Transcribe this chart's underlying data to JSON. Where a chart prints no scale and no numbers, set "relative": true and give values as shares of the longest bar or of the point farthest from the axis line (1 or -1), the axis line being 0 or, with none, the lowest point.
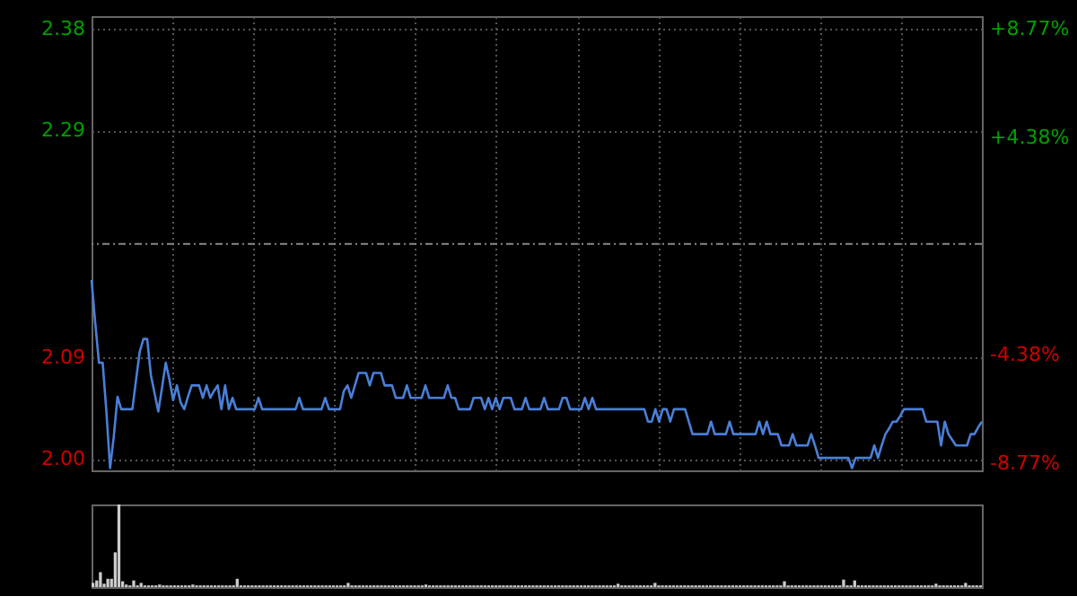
{
  "chart_data": [
    {
      "type": "line",
      "categories": [
        null,
        null,
        null,
        null,
        null,
        null,
        null,
        null,
        null,
        null,
        null,
        null,
        null,
        null,
        null,
        null,
        null,
        null,
        null,
        null,
        null,
        null,
        null,
        null,
        null,
        null,
        null,
        null,
        null,
        null,
        null,
        null,
        null,
        null,
        null,
        null,
        null,
        null,
        null,
        null,
        null,
        null,
        null,
        null,
        null,
        null,
        null,
        null,
        null,
        null,
        null,
        null,
        null,
        null,
        null,
        null,
        null,
        null,
        null,
        null,
        null,
        null,
        null,
        null,
        null,
        null,
        null,
        null,
        null,
        null,
        null,
        null,
        null,
        null,
        null,
        null,
        null,
        null,
        null,
        null,
        null,
        null,
        null,
        null,
        null,
        null,
        null,
        null,
        null,
        null,
        null,
        null,
        null,
        null,
        null,
        null,
        null,
        null,
        null,
        null,
        null,
        null,
        null,
        null,
        null,
        null,
        null,
        null,
        null,
        null,
        null,
        null,
        null,
        null,
        null,
        null,
        null,
        null,
        null,
        null,
        null,
        null,
        null,
        null,
        null,
        null,
        null,
        null,
        null,
        null,
        null,
        null,
        null,
        null,
        null,
        null,
        null,
        null,
        null,
        null,
        null,
        null,
        null,
        null,
        null,
        null,
        null,
        null,
        null,
        null,
        null,
        null,
        null,
        null,
        null,
        null,
        null,
        null,
        null,
        null,
        null,
        null,
        null,
        null,
        null,
        null,
        null,
        null,
        null,
        null,
        null,
        null,
        null,
        null,
        null,
        null,
        null,
        null,
        null,
        null,
        null,
        null,
        null,
        null,
        null,
        null,
        null,
        null,
        null,
        null,
        null,
        null,
        null,
        null,
        null,
        null,
        null,
        null,
        null,
        null,
        null,
        null,
        null,
        null,
        null,
        null,
        null,
        null,
        null,
        null,
        null,
        null,
        null,
        null,
        null,
        null,
        null,
        null,
        null,
        null,
        null,
        null,
        null,
        null,
        null,
        null,
        null,
        null,
        null,
        null,
        null,
        null,
        null,
        null,
        null,
        null,
        null,
        null,
        null,
        null,
        null
      ],
      "ylim": [
        1.99,
        2.391
      ],
      "yticks": [
        {
          "value": 2.0,
          "label": "2.00"
        },
        2.09,
        2.29,
        2.38
      ],
      "y2lim": [
        -9.05,
        9.28
      ],
      "y2ticks": [
        {
          "value": -8.77,
          "label": "-8.77%"
        },
        {
          "value": -4.38,
          "label": "-4.38%"
        },
        {
          "value": 4.38,
          "label": "+4.38%"
        },
        {
          "value": 8.77,
          "label": "+8.77%"
        }
      ],
      "ref_lines": [
        {
          "axis": "y",
          "value": 2.19,
          "line_style": "dashed",
          "color": "#888888"
        }
      ],
      "grid": true,
      "marker": "none",
      "line_style": "solid",
      "tick_labels": "y",
      "series": [
        {
          "color": "#4a7fd8",
          "values": [
            2.158,
            2.12,
            2.085,
            2.085,
            2.042,
            1.992,
            2.02,
            2.055,
            2.044,
            2.044,
            2.044,
            2.044,
            2.07,
            2.095,
            2.106,
            2.106,
            2.074,
            2.058,
            2.042,
            2.063,
            2.085,
            2.07,
            2.052,
            2.065,
            2.05,
            2.044,
            2.055,
            2.065,
            2.065,
            2.065,
            2.054,
            2.065,
            2.054,
            2.06,
            2.065,
            2.044,
            2.065,
            2.044,
            2.054,
            2.044,
            2.044,
            2.044,
            2.044,
            2.044,
            2.044,
            2.054,
            2.044,
            2.044,
            2.044,
            2.044,
            2.044,
            2.044,
            2.044,
            2.044,
            2.044,
            2.044,
            2.054,
            2.044,
            2.044,
            2.044,
            2.044,
            2.044,
            2.044,
            2.054,
            2.044,
            2.044,
            2.044,
            2.044,
            2.06,
            2.065,
            2.054,
            2.065,
            2.076,
            2.076,
            2.076,
            2.065,
            2.076,
            2.076,
            2.076,
            2.065,
            2.065,
            2.065,
            2.054,
            2.054,
            2.054,
            2.065,
            2.054,
            2.054,
            2.054,
            2.054,
            2.065,
            2.054,
            2.054,
            2.054,
            2.054,
            2.054,
            2.065,
            2.054,
            2.054,
            2.044,
            2.044,
            2.044,
            2.044,
            2.054,
            2.054,
            2.054,
            2.044,
            2.054,
            2.044,
            2.054,
            2.044,
            2.054,
            2.054,
            2.054,
            2.044,
            2.044,
            2.044,
            2.054,
            2.044,
            2.044,
            2.044,
            2.044,
            2.054,
            2.044,
            2.044,
            2.044,
            2.044,
            2.054,
            2.054,
            2.044,
            2.044,
            2.044,
            2.044,
            2.054,
            2.044,
            2.054,
            2.044,
            2.044,
            2.044,
            2.044,
            2.044,
            2.044,
            2.044,
            2.044,
            2.044,
            2.044,
            2.044,
            2.044,
            2.044,
            2.044,
            2.033,
            2.033,
            2.044,
            2.033,
            2.044,
            2.044,
            2.033,
            2.044,
            2.044,
            2.044,
            2.044,
            2.033,
            2.022,
            2.022,
            2.022,
            2.022,
            2.022,
            2.033,
            2.022,
            2.022,
            2.022,
            2.022,
            2.033,
            2.022,
            2.022,
            2.022,
            2.022,
            2.022,
            2.022,
            2.022,
            2.033,
            2.022,
            2.033,
            2.022,
            2.022,
            2.022,
            2.012,
            2.012,
            2.012,
            2.022,
            2.012,
            2.012,
            2.012,
            2.012,
            2.022,
            2.012,
            2.001,
            2.001,
            2.001,
            2.001,
            2.001,
            2.001,
            2.001,
            2.001,
            2.001,
            1.992,
            2.001,
            2.001,
            2.001,
            2.001,
            2.001,
            2.012,
            2.001,
            2.012,
            2.022,
            2.027,
            2.033,
            2.033,
            2.038,
            2.044,
            2.044,
            2.044,
            2.044,
            2.044,
            2.044,
            2.033,
            2.033,
            2.033,
            2.033,
            2.012,
            2.033,
            2.022,
            2.017,
            2.012,
            2.012,
            2.012,
            2.012,
            2.022,
            2.022,
            2.028,
            2.033
          ]
        }
      ]
    },
    {
      "type": "bar",
      "relative": true,
      "tick_labels": false,
      "categories": [
        null,
        null,
        null,
        null,
        null,
        null,
        null,
        null,
        null,
        null,
        null,
        null,
        null,
        null,
        null,
        null,
        null,
        null,
        null,
        null,
        null,
        null,
        null,
        null,
        null,
        null,
        null,
        null,
        null,
        null,
        null,
        null,
        null,
        null,
        null,
        null,
        null,
        null,
        null,
        null,
        null,
        null,
        null,
        null,
        null,
        null,
        null,
        null,
        null,
        null,
        null,
        null,
        null,
        null,
        null,
        null,
        null,
        null,
        null,
        null,
        null,
        null,
        null,
        null,
        null,
        null,
        null,
        null,
        null,
        null,
        null,
        null,
        null,
        null,
        null,
        null,
        null,
        null,
        null,
        null,
        null,
        null,
        null,
        null,
        null,
        null,
        null,
        null,
        null,
        null,
        null,
        null,
        null,
        null,
        null,
        null,
        null,
        null,
        null,
        null,
        null,
        null,
        null,
        null,
        null,
        null,
        null,
        null,
        null,
        null,
        null,
        null,
        null,
        null,
        null,
        null,
        null,
        null,
        null,
        null,
        null,
        null,
        null,
        null,
        null,
        null,
        null,
        null,
        null,
        null,
        null,
        null,
        null,
        null,
        null,
        null,
        null,
        null,
        null,
        null,
        null,
        null,
        null,
        null,
        null,
        null,
        null,
        null,
        null,
        null,
        null,
        null,
        null,
        null,
        null,
        null,
        null,
        null,
        null,
        null,
        null,
        null,
        null,
        null,
        null,
        null,
        null,
        null,
        null,
        null,
        null,
        null,
        null,
        null,
        null,
        null,
        null,
        null,
        null,
        null,
        null,
        null,
        null,
        null,
        null,
        null,
        null,
        null,
        null,
        null,
        null,
        null,
        null,
        null,
        null,
        null,
        null,
        null,
        null,
        null,
        null,
        null,
        null,
        null,
        null,
        null,
        null,
        null,
        null,
        null,
        null,
        null,
        null,
        null,
        null,
        null,
        null,
        null,
        null,
        null,
        null,
        null,
        null,
        null,
        null,
        null,
        null,
        null,
        null,
        null,
        null,
        null,
        null,
        null,
        null,
        null,
        null,
        null,
        null,
        null,
        null
      ],
      "series": [
        {
          "color": "#cccccc",
          "values": [
            0.05,
            0.08,
            0.18,
            0.04,
            0.1,
            0.1,
            0.42,
            1.0,
            0.07,
            0.03,
            0.02,
            0.08,
            0.02,
            0.05,
            0.02,
            0.02,
            0.02,
            0.02,
            0.03,
            0.02,
            0.02,
            0.02,
            0.02,
            0.02,
            0.02,
            0.02,
            0.02,
            0.03,
            0.02,
            0.02,
            0.02,
            0.02,
            0.02,
            0.02,
            0.02,
            0.02,
            0.02,
            0.02,
            0.02,
            0.1,
            0.02,
            0.02,
            0.02,
            0.02,
            0.02,
            0.02,
            0.02,
            0.02,
            0.02,
            0.02,
            0.02,
            0.02,
            0.02,
            0.02,
            0.02,
            0.02,
            0.02,
            0.02,
            0.02,
            0.02,
            0.02,
            0.02,
            0.02,
            0.02,
            0.02,
            0.02,
            0.02,
            0.02,
            0.02,
            0.05,
            0.02,
            0.02,
            0.02,
            0.02,
            0.02,
            0.02,
            0.02,
            0.02,
            0.02,
            0.02,
            0.02,
            0.02,
            0.02,
            0.02,
            0.02,
            0.02,
            0.02,
            0.02,
            0.02,
            0.02,
            0.03,
            0.02,
            0.02,
            0.02,
            0.02,
            0.02,
            0.02,
            0.02,
            0.02,
            0.02,
            0.02,
            0.02,
            0.02,
            0.02,
            0.02,
            0.02,
            0.02,
            0.02,
            0.02,
            0.02,
            0.02,
            0.02,
            0.02,
            0.02,
            0.02,
            0.02,
            0.02,
            0.02,
            0.02,
            0.02,
            0.02,
            0.02,
            0.02,
            0.02,
            0.02,
            0.02,
            0.02,
            0.02,
            0.02,
            0.02,
            0.02,
            0.02,
            0.02,
            0.02,
            0.02,
            0.02,
            0.02,
            0.02,
            0.02,
            0.02,
            0.02,
            0.02,
            0.04,
            0.02,
            0.02,
            0.02,
            0.02,
            0.02,
            0.02,
            0.02,
            0.02,
            0.02,
            0.05,
            0.02,
            0.02,
            0.02,
            0.02,
            0.02,
            0.02,
            0.02,
            0.02,
            0.02,
            0.02,
            0.02,
            0.02,
            0.02,
            0.02,
            0.02,
            0.02,
            0.02,
            0.02,
            0.02,
            0.02,
            0.02,
            0.02,
            0.02,
            0.02,
            0.02,
            0.02,
            0.02,
            0.02,
            0.02,
            0.02,
            0.02,
            0.02,
            0.02,
            0.02,
            0.07,
            0.02,
            0.02,
            0.02,
            0.02,
            0.02,
            0.02,
            0.02,
            0.02,
            0.02,
            0.02,
            0.02,
            0.02,
            0.02,
            0.02,
            0.02,
            0.09,
            0.02,
            0.02,
            0.08,
            0.02,
            0.02,
            0.02,
            0.02,
            0.02,
            0.02,
            0.02,
            0.02,
            0.02,
            0.02,
            0.02,
            0.02,
            0.02,
            0.02,
            0.02,
            0.02,
            0.02,
            0.02,
            0.02,
            0.02,
            0.02,
            0.04,
            0.02,
            0.02,
            0.02,
            0.02,
            0.02,
            0.02,
            0.02,
            0.05,
            0.02,
            0.02,
            0.02,
            0.02
          ]
        }
      ]
    }
  ]
}
